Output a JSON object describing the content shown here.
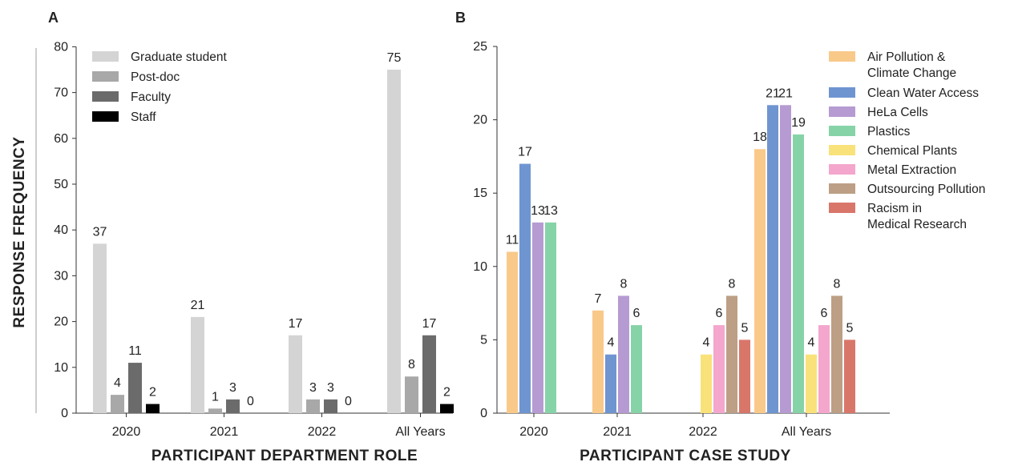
{
  "chart_data": [
    {
      "panel": "A",
      "type": "bar",
      "xlabel": "PARTICIPANT DEPARTMENT ROLE",
      "ylabel": "RESPONSE FREQUENCY",
      "ylim": [
        0,
        80
      ],
      "yticks": [
        "0",
        "10",
        "20",
        "30",
        "40",
        "50",
        "60",
        "70",
        "80"
      ],
      "categories": [
        "2020",
        "2021",
        "2022",
        "All Years"
      ],
      "legend_position": "top-left",
      "series": [
        {
          "name": "Graduate student",
          "color": "#d4d4d4",
          "values": [
            37,
            21,
            17,
            75
          ]
        },
        {
          "name": "Post-doc",
          "color": "#a8a8a8",
          "values": [
            4,
            1,
            3,
            8
          ]
        },
        {
          "name": "Faculty",
          "color": "#6b6b6b",
          "values": [
            11,
            3,
            3,
            17
          ]
        },
        {
          "name": "Staff",
          "color": "#000000",
          "values": [
            2,
            0,
            0,
            2
          ]
        }
      ]
    },
    {
      "panel": "B",
      "type": "bar",
      "xlabel": "PARTICIPANT CASE STUDY",
      "ylabel": "",
      "ylim": [
        0,
        25
      ],
      "yticks": [
        "0",
        "5",
        "10",
        "15",
        "20",
        "25"
      ],
      "categories": [
        "2020",
        "2021",
        "2022",
        "All Years"
      ],
      "legend_position": "top-right",
      "series": [
        {
          "name": "Air Pollution & Climate Change",
          "legend_lines": [
            "Air Pollution &",
            "Climate Change"
          ],
          "color": "#f9c98a",
          "values": [
            11,
            7,
            null,
            18
          ]
        },
        {
          "name": "Clean Water Access",
          "legend_lines": [
            "Clean Water Access"
          ],
          "color": "#6f95d1",
          "values": [
            17,
            4,
            null,
            21
          ]
        },
        {
          "name": "HeLa Cells",
          "legend_lines": [
            "HeLa Cells"
          ],
          "color": "#b59bd2",
          "values": [
            13,
            8,
            null,
            21
          ]
        },
        {
          "name": "Plastics",
          "legend_lines": [
            "Plastics"
          ],
          "color": "#86d3a8",
          "values": [
            13,
            6,
            null,
            19
          ]
        },
        {
          "name": "Chemical Plants",
          "legend_lines": [
            "Chemical Plants"
          ],
          "color": "#f9e27a",
          "values": [
            null,
            null,
            4,
            4
          ]
        },
        {
          "name": "Metal Extraction",
          "legend_lines": [
            "Metal Extraction"
          ],
          "color": "#f4a6cc",
          "values": [
            null,
            null,
            6,
            6
          ]
        },
        {
          "name": "Outsourcing Pollution",
          "legend_lines": [
            "Outsourcing Pollution"
          ],
          "color": "#bc9f85",
          "values": [
            null,
            null,
            8,
            8
          ]
        },
        {
          "name": "Racism in Medical Research",
          "legend_lines": [
            "Racism in",
            "Medical Research"
          ],
          "color": "#d9766a",
          "values": [
            null,
            null,
            5,
            5
          ]
        }
      ]
    }
  ]
}
